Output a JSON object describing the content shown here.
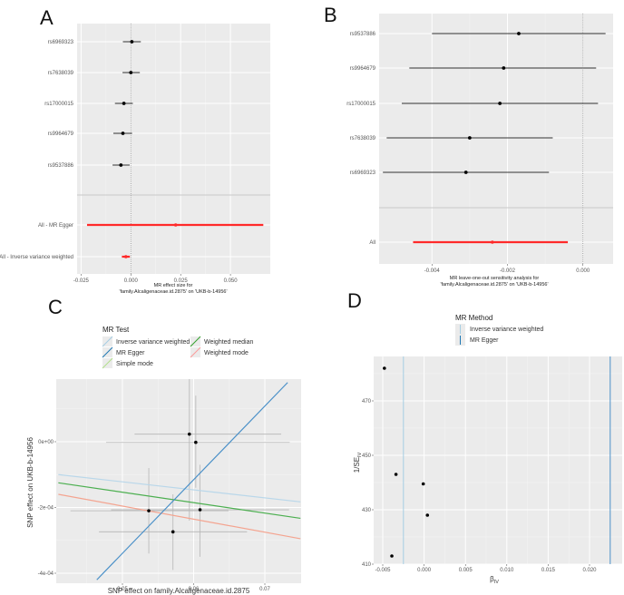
{
  "chart_data": [
    {
      "id": "A",
      "type": "scatter",
      "subtype": "forest",
      "panel_label": "A",
      "title": "",
      "xlabel_lines": [
        "MR effect size for",
        "'family.Alcaligenaceae.id.2875' on 'UKB-b-14956'"
      ],
      "ylabel": "",
      "xlim": [
        -0.027,
        0.07
      ],
      "xticks": [
        -0.025,
        0.0,
        0.025,
        0.05
      ],
      "xtick_labels": [
        "-0.025",
        "0.000",
        "0.025",
        "0.050"
      ],
      "reference_line": 0,
      "rows": [
        {
          "label": "rs6969323",
          "estimate": 0.0005,
          "lower": -0.004,
          "upper": 0.005,
          "group": "snp"
        },
        {
          "label": "rs7638039",
          "estimate": 0.0,
          "lower": -0.0042,
          "upper": 0.0045,
          "group": "snp"
        },
        {
          "label": "rs17000015",
          "estimate": -0.0035,
          "lower": -0.008,
          "upper": 0.001,
          "group": "snp"
        },
        {
          "label": "rs9964679",
          "estimate": -0.004,
          "lower": -0.0088,
          "upper": 0.0006,
          "group": "snp"
        },
        {
          "label": "rs9537886",
          "estimate": -0.005,
          "lower": -0.0092,
          "upper": -0.0006,
          "group": "snp"
        },
        {
          "label": "All - MR Egger",
          "estimate": 0.0225,
          "lower": -0.022,
          "upper": 0.0665,
          "group": "summary"
        },
        {
          "label": "All - Inverse variance weighted",
          "estimate": -0.0025,
          "lower": -0.0045,
          "upper": -0.0005,
          "group": "summary"
        }
      ],
      "colors": {
        "snp": "#000000",
        "summary": "#ff2a2a"
      }
    },
    {
      "id": "B",
      "type": "scatter",
      "subtype": "forest",
      "panel_label": "B",
      "title": "",
      "xlabel_lines": [
        "MR leave-one-out sensitivity analysis for",
        "'family.Alcaligenaceae.id.2875' on 'UKB-b-14956'"
      ],
      "ylabel": "",
      "xlim": [
        -0.0054,
        0.0008
      ],
      "xticks": [
        -0.004,
        -0.002,
        0.0
      ],
      "xtick_labels": [
        "-0.004",
        "-0.002",
        "0.000"
      ],
      "reference_line": 0,
      "rows": [
        {
          "label": "rs9537886",
          "estimate": -0.0017,
          "lower": -0.004,
          "upper": 0.0006,
          "group": "snp"
        },
        {
          "label": "rs9964679",
          "estimate": -0.0021,
          "lower": -0.0046,
          "upper": 0.00035,
          "group": "snp"
        },
        {
          "label": "rs17000015",
          "estimate": -0.0022,
          "lower": -0.0048,
          "upper": 0.0004,
          "group": "snp"
        },
        {
          "label": "rs7638039",
          "estimate": -0.003,
          "lower": -0.0052,
          "upper": -0.0008,
          "group": "snp"
        },
        {
          "label": "rs6969323",
          "estimate": -0.0031,
          "lower": -0.0053,
          "upper": -0.0009,
          "group": "snp"
        },
        {
          "label": "All",
          "estimate": -0.0024,
          "lower": -0.0045,
          "upper": -0.0004,
          "group": "summary"
        }
      ],
      "colors": {
        "snp": "#000000",
        "summary": "#ff2a2a"
      }
    },
    {
      "id": "C",
      "type": "scatter",
      "subtype": "mr-scatter",
      "panel_label": "C",
      "title": "",
      "xlabel": "SNP effect on family.Alcaligenaceae.id.2875",
      "ylabel": "SNP effect on UKB-b-14956",
      "xlim": [
        0.041,
        0.075
      ],
      "ylim": [
        -0.00042,
        0.00018
      ],
      "xticks": [
        0.05,
        0.06,
        0.07
      ],
      "xtick_labels": [
        "0.05",
        "0.06",
        "0.07"
      ],
      "yticks": [
        0.0,
        -0.0002,
        -0.0004
      ],
      "ytick_labels": [
        "0e+00",
        "-2e-04",
        "-4e-04"
      ],
      "legend": {
        "title": "MR Test",
        "position": "top",
        "entries": [
          {
            "name": "Inverse variance weighted",
            "color": "#a6cee3"
          },
          {
            "name": "MR Egger",
            "color": "#1f78b4"
          },
          {
            "name": "Simple mode",
            "color": "#b2df8a"
          },
          {
            "name": "Weighted median",
            "color": "#33a02c"
          },
          {
            "name": "Weighted mode",
            "color": "#fb9a99"
          }
        ]
      },
      "points": [
        {
          "x": 0.0594,
          "y": 2.3e-05,
          "x_lo": 0.0517,
          "x_hi": 0.0723,
          "y_lo": -0.00024,
          "y_hi": 0.00026
        },
        {
          "x": 0.0603,
          "y": -2e-06,
          "x_lo": 0.0477,
          "x_hi": 0.0735,
          "y_lo": -0.00014,
          "y_hi": 0.00014
        },
        {
          "x": 0.0537,
          "y": -0.00021,
          "x_lo": 0.0427,
          "x_hi": 0.0649,
          "y_lo": -0.00034,
          "y_hi": -8e-05
        },
        {
          "x": 0.0609,
          "y": -0.000207,
          "x_lo": 0.0484,
          "x_hi": 0.0734,
          "y_lo": -0.00035,
          "y_hi": -7e-05
        },
        {
          "x": 0.0571,
          "y": -0.000274,
          "x_lo": 0.0467,
          "x_hi": 0.0675,
          "y_lo": -0.00039,
          "y_hi": -0.00016
        }
      ],
      "lines": [
        {
          "name": "Inverse variance weighted",
          "color": "#b9d7ea",
          "x1": 0.041,
          "y1": -0.0001,
          "x2": 0.075,
          "y2": -0.000183
        },
        {
          "name": "Weighted median",
          "color": "#4caf50",
          "x1": 0.041,
          "y1": -0.000125,
          "x2": 0.075,
          "y2": -0.000233
        },
        {
          "name": "Weighted mode",
          "color": "#f4a490",
          "x1": 0.041,
          "y1": -0.00016,
          "x2": 0.075,
          "y2": -0.000295
        },
        {
          "name": "MR Egger",
          "color": "#4a90c8",
          "x1": 0.0464,
          "y1": -0.00042,
          "x2": 0.0732,
          "y2": 0.00018
        }
      ]
    },
    {
      "id": "D",
      "type": "scatter",
      "subtype": "funnel",
      "panel_label": "D",
      "title": "",
      "xlabel": "β",
      "xlabel_sub": "IV",
      "ylabel": "1/SE",
      "ylabel_sub": "IV",
      "xlim": [
        -0.0057,
        0.0235
      ],
      "ylim": [
        410,
        486
      ],
      "xticks": [
        -0.005,
        0.0,
        0.005,
        0.01,
        0.015,
        0.02
      ],
      "xtick_labels": [
        "-0.005",
        "0.000",
        "0.005",
        "0.010",
        "0.015",
        "0.020"
      ],
      "yticks": [
        410,
        430,
        450,
        470
      ],
      "ytick_labels": [
        "410",
        "430",
        "450",
        "470"
      ],
      "legend": {
        "title": "MR Method",
        "position": "top",
        "entries": [
          {
            "name": "Inverse variance weighted",
            "color": "#a6cee3"
          },
          {
            "name": "MR Egger",
            "color": "#1f78b4"
          }
        ]
      },
      "points": [
        {
          "x": -0.0048,
          "y": 482
        },
        {
          "x": -0.0034,
          "y": 443
        },
        {
          "x": -0.0001,
          "y": 439.5
        },
        {
          "x": 0.0004,
          "y": 428
        },
        {
          "x": -0.0039,
          "y": 413
        }
      ],
      "vlines": [
        {
          "name": "Inverse variance weighted",
          "x": -0.0025,
          "color": "#a6cee3"
        },
        {
          "name": "MR Egger",
          "x": 0.0225,
          "color": "#4a90c8"
        }
      ]
    }
  ]
}
